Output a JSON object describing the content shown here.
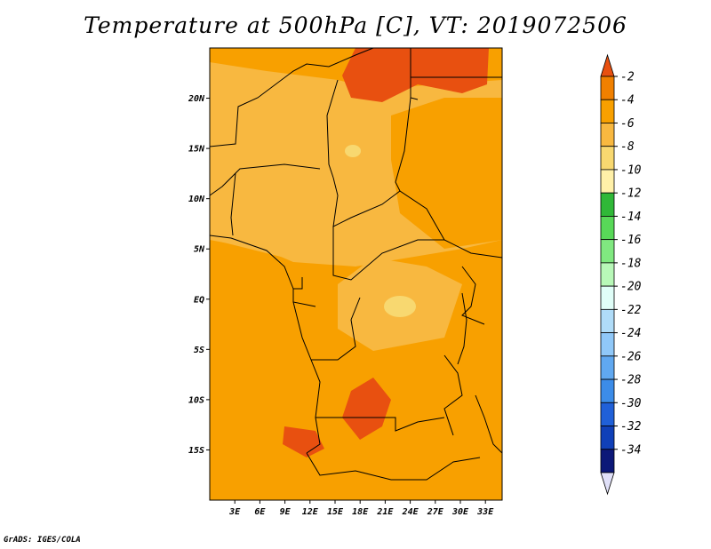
{
  "title": "Temperature at 500hPa [C], VT: 2019072506",
  "credit": "GrADS: IGES/COLA",
  "map": {
    "lon_range": [
      0,
      35
    ],
    "lat_range": [
      -20,
      25
    ],
    "lat_ticks": [
      {
        "value": 20,
        "label": "20N"
      },
      {
        "value": 15,
        "label": "15N"
      },
      {
        "value": 10,
        "label": "10N"
      },
      {
        "value": 5,
        "label": "5N"
      },
      {
        "value": 0,
        "label": "EQ"
      },
      {
        "value": -5,
        "label": "5S"
      },
      {
        "value": -10,
        "label": "10S"
      },
      {
        "value": -15,
        "label": "15S"
      }
    ],
    "lon_ticks": [
      {
        "value": 3,
        "label": "3E"
      },
      {
        "value": 6,
        "label": "6E"
      },
      {
        "value": 9,
        "label": "9E"
      },
      {
        "value": 12,
        "label": "12E"
      },
      {
        "value": 15,
        "label": "15E"
      },
      {
        "value": 18,
        "label": "18E"
      },
      {
        "value": 21,
        "label": "21E"
      },
      {
        "value": 24,
        "label": "24E"
      },
      {
        "value": 27,
        "label": "27E"
      },
      {
        "value": 30,
        "label": "30E"
      },
      {
        "value": 33,
        "label": "33E"
      }
    ]
  },
  "colorbar": {
    "levels": [
      "-2",
      "-4",
      "-6",
      "-8",
      "-10",
      "-12",
      "-14",
      "-16",
      "-18",
      "-20",
      "-22",
      "-24",
      "-26",
      "-28",
      "-30",
      "-32",
      "-34"
    ],
    "colors": [
      "#e85010",
      "#f08000",
      "#f8a000",
      "#f8b840",
      "#f8d870",
      "#fff0a8",
      "#30b838",
      "#58d858",
      "#80e880",
      "#b8f8b8",
      "#e0fef8",
      "#b0dcf8",
      "#90c8f8",
      "#60a8f0",
      "#3c8ce8",
      "#2060d8",
      "#1040b8",
      "#0c1878",
      "#e0e0f8"
    ]
  }
}
